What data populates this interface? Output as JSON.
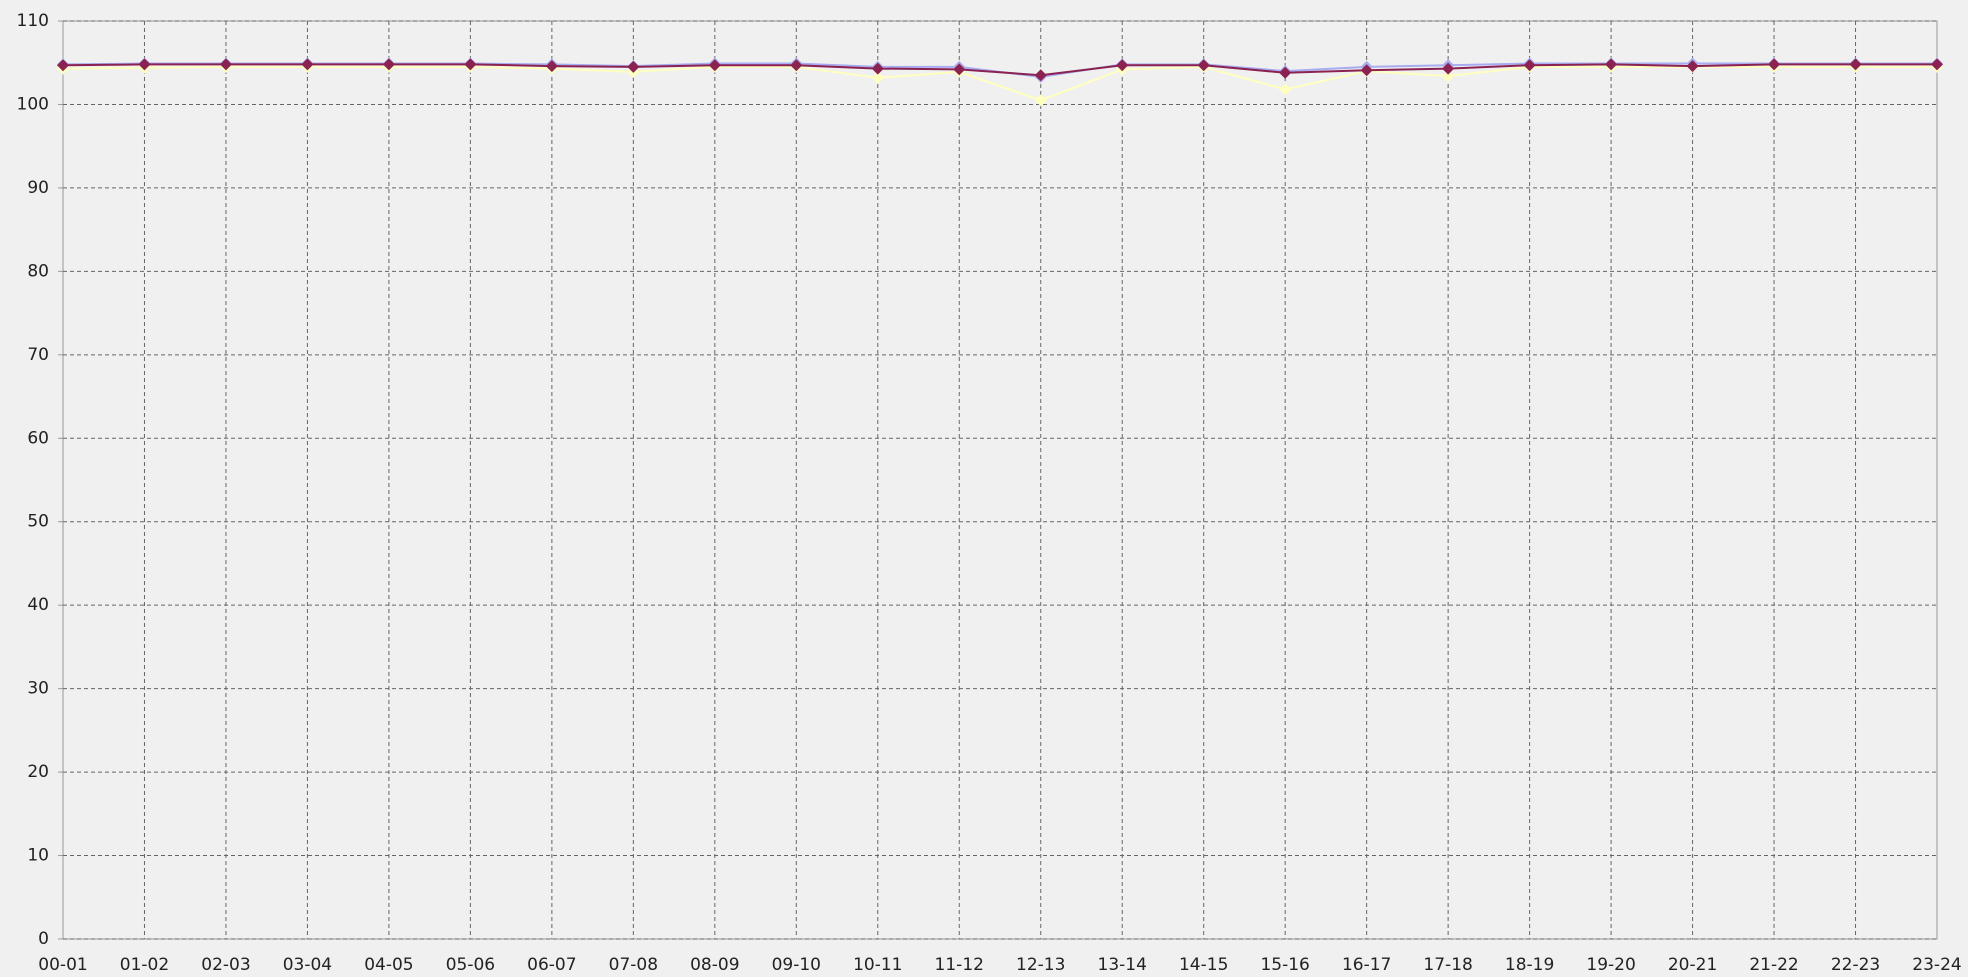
{
  "chart_data": {
    "type": "line",
    "categories": [
      "00-01",
      "01-02",
      "02-03",
      "03-04",
      "04-05",
      "05-06",
      "06-07",
      "07-08",
      "08-09",
      "09-10",
      "10-11",
      "11-12",
      "12-13",
      "13-14",
      "14-15",
      "15-16",
      "16-17",
      "17-18",
      "18-19",
      "19-20",
      "20-21",
      "21-22",
      "22-23",
      "23-24"
    ],
    "series": [
      {
        "color": "#ffffc0",
        "values": [
          104.3,
          104.4,
          104.5,
          104.5,
          104.5,
          104.5,
          104.3,
          103.9,
          104.5,
          104.5,
          103.2,
          103.9,
          100.5,
          104.2,
          104.5,
          101.8,
          104.0,
          103.4,
          104.5,
          104.5,
          104.5,
          104.5,
          104.5,
          104.5
        ]
      },
      {
        "color": "#a8acf0",
        "values": [
          104.8,
          104.9,
          104.9,
          104.9,
          104.9,
          104.9,
          104.8,
          104.6,
          104.9,
          104.9,
          104.5,
          104.5,
          103.3,
          104.8,
          104.8,
          104.0,
          104.5,
          104.7,
          104.9,
          104.9,
          104.9,
          104.9,
          104.9,
          104.9
        ]
      },
      {
        "color": "#8b2252",
        "values": [
          104.7,
          104.8,
          104.8,
          104.8,
          104.8,
          104.8,
          104.6,
          104.5,
          104.7,
          104.7,
          104.3,
          104.2,
          103.5,
          104.7,
          104.7,
          103.8,
          104.1,
          104.3,
          104.7,
          104.8,
          104.6,
          104.8,
          104.8,
          104.8
        ]
      }
    ],
    "ylim": [
      0,
      110
    ],
    "yticks": [
      0,
      10,
      20,
      30,
      40,
      50,
      60,
      70,
      80,
      90,
      100,
      110
    ],
    "grid": true
  }
}
